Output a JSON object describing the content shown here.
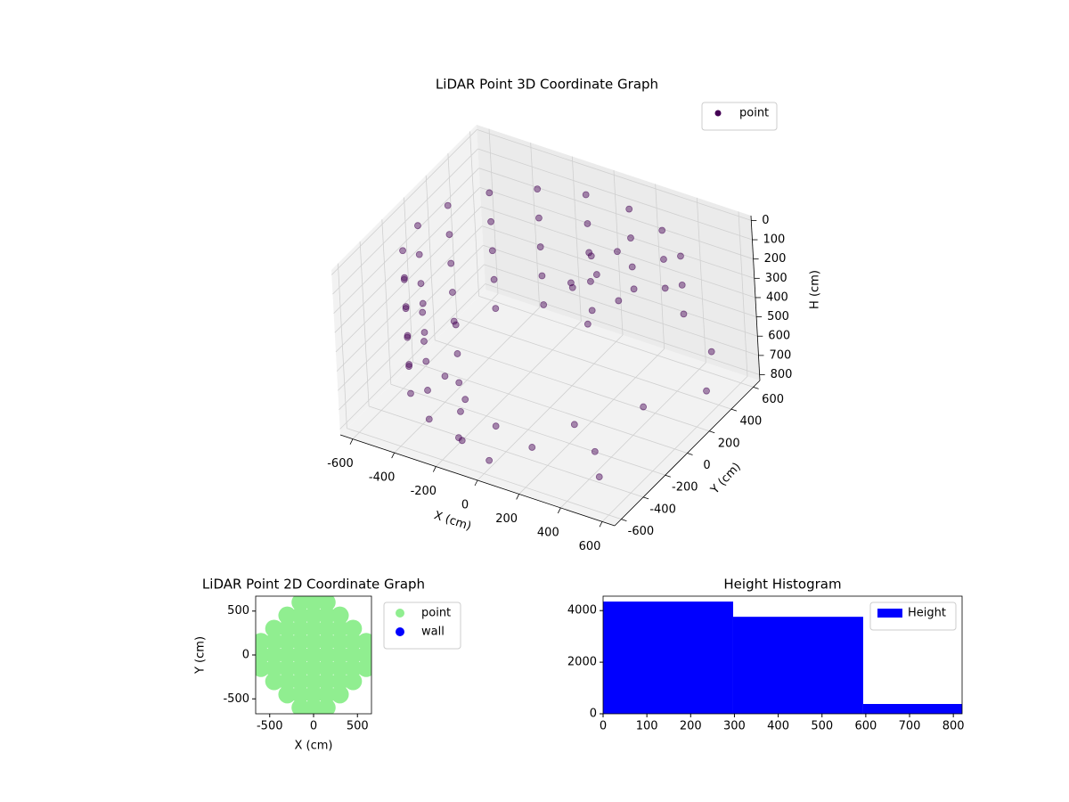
{
  "chart_data": [
    {
      "type": "scatter3d",
      "title": "LiDAR Point 3D Coordinate Graph",
      "xlabel": "X (cm)",
      "ylabel": "Y (cm)",
      "zlabel": "H (cm)",
      "xlim": [
        -660,
        660
      ],
      "ylim": [
        -660,
        660
      ],
      "zlim": [
        830,
        -25
      ],
      "xticks": [
        -600,
        -400,
        -200,
        0,
        200,
        400,
        600
      ],
      "yticks": [
        -600,
        -400,
        -200,
        0,
        200,
        400,
        600
      ],
      "zticks": [
        0,
        100,
        200,
        300,
        400,
        500,
        600,
        700,
        800
      ],
      "grid": true,
      "legend": "upper right",
      "series": [
        {
          "name": "point",
          "color": "#440154",
          "x": [
            -104,
            -300,
            -460,
            -564,
            -600,
            -564,
            -460,
            -300,
            -104,
            -104,
            -300,
            -460,
            -564,
            -600,
            -564,
            -460,
            -300,
            -104,
            -104,
            -300,
            -460,
            -564,
            -600,
            -564,
            -460,
            -300,
            -104,
            -104,
            -300,
            -460,
            -564,
            -600,
            -564,
            -460,
            -300,
            -104,
            -104,
            -300,
            -460,
            -564,
            -600,
            -564,
            -460,
            -300,
            -104,
            104,
            300,
            460,
            104,
            300,
            460,
            104,
            300,
            460,
            100,
            150,
            200,
            50,
            250,
            0,
            150,
            300,
            -300,
            -100,
            100,
            200,
            -450,
            350,
            400,
            -200,
            0,
            450,
            600,
            550
          ],
          "y": [
            591,
            520,
            386,
            205,
            0,
            -205,
            -386,
            -520,
            -591,
            591,
            520,
            386,
            205,
            0,
            -205,
            -386,
            -520,
            -591,
            591,
            520,
            386,
            205,
            0,
            -205,
            -386,
            -520,
            -591,
            591,
            520,
            386,
            205,
            0,
            -205,
            -386,
            -520,
            -591,
            591,
            520,
            386,
            205,
            0,
            -205,
            -386,
            -520,
            -591,
            591,
            520,
            386,
            591,
            520,
            386,
            591,
            520,
            386,
            250,
            200,
            300,
            150,
            200,
            250,
            100,
            250,
            -200,
            -300,
            -350,
            -150,
            -100,
            -250,
            100,
            -450,
            -550,
            -400,
            300,
            450
          ],
          "z": [
            100,
            100,
            100,
            100,
            100,
            100,
            100,
            100,
            100,
            250,
            250,
            250,
            250,
            250,
            250,
            250,
            250,
            250,
            400,
            400,
            400,
            400,
            400,
            400,
            400,
            400,
            400,
            550,
            550,
            550,
            550,
            550,
            550,
            550,
            550,
            550,
            700,
            700,
            700,
            700,
            700,
            700,
            700,
            700,
            700,
            100,
            100,
            100,
            250,
            250,
            250,
            400,
            400,
            400,
            150,
            200,
            120,
            250,
            300,
            350,
            400,
            250,
            780,
            790,
            800,
            760,
            770,
            790,
            740,
            800,
            790,
            800,
            700,
            600
          ]
        }
      ]
    },
    {
      "type": "scatter",
      "title": "LiDAR Point 2D Coordinate Graph",
      "xlabel": "X (cm)",
      "ylabel": "Y (cm)",
      "xlim": [
        -660,
        660
      ],
      "ylim": [
        -670,
        670
      ],
      "xticks": [
        -500,
        0,
        500
      ],
      "yticks": [
        -500,
        0,
        500
      ],
      "legend": "outside right",
      "series": [
        {
          "name": "point",
          "color": "#90ee90",
          "x": [
            -600,
            -600,
            -600,
            -450,
            -450,
            -450,
            -450,
            -450,
            -300,
            -300,
            -300,
            -300,
            -300,
            -300,
            -300,
            -150,
            -150,
            -150,
            -150,
            -150,
            -150,
            -150,
            -150,
            -150,
            0,
            0,
            0,
            0,
            0,
            0,
            0,
            0,
            0,
            150,
            150,
            150,
            150,
            150,
            150,
            150,
            150,
            150,
            300,
            300,
            300,
            300,
            300,
            300,
            300,
            450,
            450,
            450,
            450,
            450,
            600,
            600,
            600
          ],
          "y": [
            -150,
            0,
            150,
            -300,
            -150,
            0,
            150,
            300,
            -450,
            -300,
            -150,
            0,
            150,
            300,
            450,
            -600,
            -450,
            -300,
            -150,
            0,
            150,
            300,
            450,
            600,
            -600,
            -450,
            -300,
            -150,
            0,
            150,
            300,
            450,
            600,
            -600,
            -450,
            -300,
            -150,
            0,
            150,
            300,
            450,
            600,
            -450,
            -300,
            -150,
            0,
            150,
            300,
            450,
            -300,
            -150,
            0,
            150,
            300,
            -150,
            0,
            150
          ]
        },
        {
          "name": "wall",
          "color": "#0000ff",
          "x": [],
          "y": []
        }
      ]
    },
    {
      "type": "histogram",
      "title": "Height Histogram",
      "bins": [
        0,
        297,
        594,
        820
      ],
      "xlim": [
        0,
        820
      ],
      "ylim": [
        0,
        4560
      ],
      "xticks": [
        0,
        100,
        200,
        300,
        400,
        500,
        600,
        700,
        800
      ],
      "yticks": [
        0,
        2000,
        4000
      ],
      "legend": "upper right",
      "series": [
        {
          "name": "Height",
          "color": "#0000ff",
          "values": [
            4350,
            3760,
            380
          ]
        }
      ]
    }
  ]
}
